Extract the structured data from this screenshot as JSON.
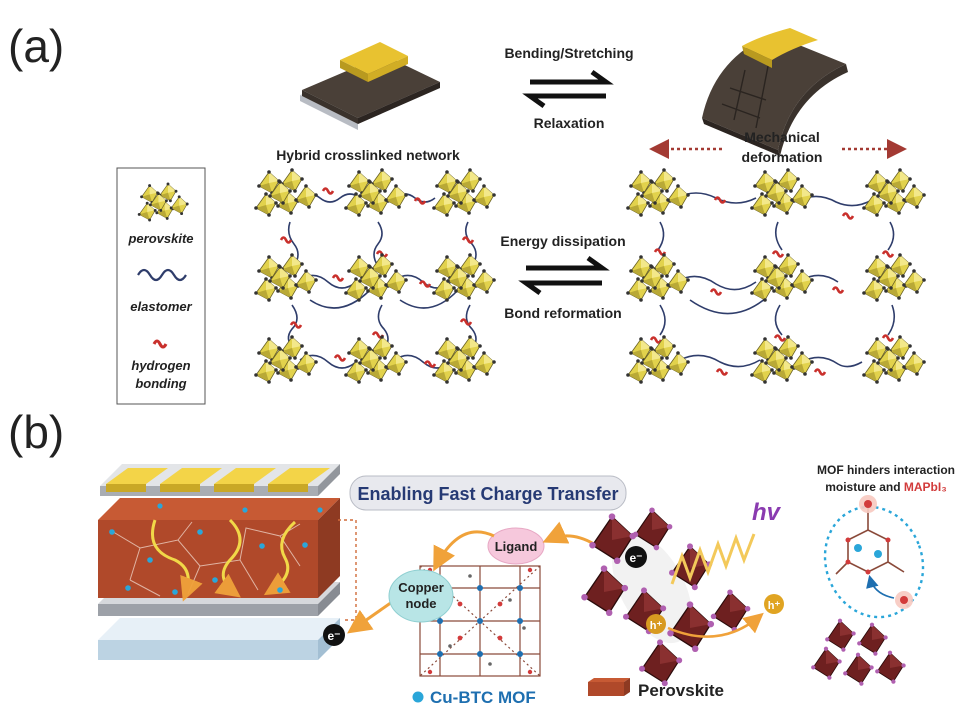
{
  "panel_a": {
    "label": "(a)",
    "top_arrow_upper": "Bending/Stretching",
    "top_arrow_lower": "Relaxation",
    "left_network_title": "Hybrid crosslinked network",
    "right_title_line1": "Mechanical",
    "right_title_line2": "deformation",
    "mid_arrow_upper": "Energy dissipation",
    "mid_arrow_lower": "Bond reformation",
    "legend": {
      "perovskite": "perovskite",
      "elastomer": "elastomer",
      "hbond_line1": "hydrogen",
      "hbond_line2": "bonding"
    }
  },
  "panel_b": {
    "label": "(b)",
    "banner": "Enabling Fast Charge Transfer",
    "ligand": "Ligand",
    "copper_line1": "Copper",
    "copper_line2": "node",
    "electron": "e⁻",
    "hole": "h⁺",
    "hv": "hv",
    "mof_label": "Cu-BTC MOF",
    "perovskite_label": "Perovskite",
    "mof_note_line1": "MOF hinders interaction",
    "mof_note_line2a": "moisture and ",
    "mof_note_line2b": "MAPbI₃"
  },
  "colors": {
    "perovskite_yellow": "#e2d24c",
    "elastomer": "#2f3d6b",
    "hbond_red": "#c9302c",
    "arrow_red": "#a33a33",
    "film_brown": "#b0492a",
    "electrode_gold": "#e8c230",
    "mof_cyan": "#2aa6d9",
    "oct_dark": "#5a1a1a",
    "orange": "#f0a23a"
  }
}
